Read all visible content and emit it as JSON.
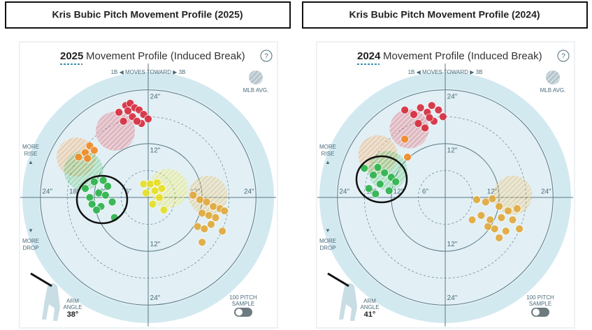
{
  "chart_data": [
    {
      "type": "scatter",
      "title": "Kris Bubic Pitch Movement Profile (2025)",
      "year": "2025",
      "subtitle": "Movement Profile (Induced Break)",
      "help": "?",
      "direction": "1B ◀ MOVES TOWARD ▶ 3B",
      "mlb_avg": "MLB AVG.",
      "rise": [
        "MORE",
        "RISE"
      ],
      "drop": [
        "MORE",
        "DROP"
      ],
      "arm_angle_label": [
        "ARM",
        "ANGLE"
      ],
      "arm_angle": "38°",
      "sample": [
        "100 PITCH",
        "SAMPLE"
      ],
      "rlim": [
        0,
        28
      ],
      "rings": [
        {
          "value": 6,
          "label": "6\""
        },
        {
          "value": 12,
          "label": "12\""
        },
        {
          "value": 18,
          "label": "18\""
        },
        {
          "value": 24,
          "label": "24\""
        }
      ],
      "series": [
        {
          "color": "#d62a3c",
          "avg_x": -7.3,
          "avg_y": 14.8,
          "x": [
            -6.5,
            -5,
            -4,
            -3,
            -2,
            -1,
            0,
            -5.5,
            -3.5,
            -1.5,
            -2.5,
            -4.5
          ],
          "values": [
            19,
            20.5,
            21,
            20,
            19.5,
            18.5,
            17.5,
            17,
            18,
            16.5,
            17,
            19.3
          ]
        },
        {
          "color": "#f08a24",
          "avg_x": -16,
          "avg_y": 9,
          "x": [
            -13,
            -12,
            -14,
            -15.5,
            -13.5
          ],
          "values": [
            11.5,
            10.5,
            10,
            9,
            8.7
          ]
        },
        {
          "color": "#2bb34a",
          "avg_x": -14.4,
          "avg_y": 6,
          "x": [
            -14,
            -12,
            -10,
            -9,
            -11,
            -13,
            -12.5,
            -10.5,
            -8,
            -9.5,
            -11.5,
            -7.5
          ],
          "values": [
            2,
            3.5,
            3.8,
            2.5,
            1,
            0,
            -1.5,
            -2,
            -1,
            0.5,
            -2.8,
            -4.5
          ]
        },
        {
          "color": "#e6df22",
          "avg_x": 4.4,
          "avg_y": 2,
          "x": [
            -1,
            0.5,
            2,
            3,
            1.5,
            -0.5,
            2.5,
            3.5,
            1
          ],
          "values": [
            3,
            3,
            3.3,
            2,
            1.5,
            1,
            0,
            -2.8,
            -1.5
          ]
        },
        {
          "color": "#e0a83a",
          "avg_x": 13.3,
          "avg_y": 0.5,
          "x": [
            10,
            11.5,
            13,
            14.5,
            16,
            12,
            13.5,
            15,
            17,
            11,
            12.5,
            14,
            16.5,
            12
          ],
          "values": [
            0.5,
            -0.5,
            -1,
            -2,
            -2.5,
            -3.5,
            -4,
            -4.5,
            -3,
            -6.5,
            -7,
            -6,
            -7.5,
            -10
          ]
        }
      ]
    },
    {
      "type": "scatter",
      "title": "Kris Bubic Pitch Movement Profile (2024)",
      "year": "2024",
      "subtitle": "Movement Profile (Induced Break)",
      "help": "?",
      "direction": "1B ◀ MOVES TOWARD ▶ 3B",
      "mlb_avg": "MLB AVG.",
      "rise": [
        "MORE",
        "RISE"
      ],
      "drop": [
        "MORE",
        "DROP"
      ],
      "arm_angle_label": [
        "ARM",
        "ANGLE"
      ],
      "arm_angle": "41°",
      "sample": [
        "100 PITCH",
        "SAMPLE"
      ],
      "rlim": [
        0,
        28
      ],
      "rings": [
        {
          "value": 6,
          "label": "6\""
        },
        {
          "value": 12,
          "label": "12\""
        },
        {
          "value": 18,
          "label": "18\""
        },
        {
          "value": 24,
          "label": "24\""
        }
      ],
      "series": [
        {
          "color": "#d62a3c",
          "avg_x": -8,
          "avg_y": 15.3,
          "x": [
            -9,
            -7,
            -5.5,
            -4,
            -3,
            -1.5,
            -0.5,
            -6,
            -4.5,
            -2.5,
            -3.5
          ],
          "values": [
            19.5,
            18.5,
            20,
            19,
            20.5,
            19.5,
            18,
            16.5,
            15.5,
            17,
            17.8
          ]
        },
        {
          "color": "#f08a24",
          "avg_x": -15,
          "avg_y": 9.5,
          "x": [
            -9,
            -8.4
          ],
          "values": [
            13,
            9
          ]
        },
        {
          "color": "#2bb34a",
          "avg_x": -12.8,
          "avg_y": 6,
          "x": [
            -18,
            -16,
            -15,
            -13.5,
            -12,
            -11,
            -14.5,
            -17,
            -12.5,
            -15.5
          ],
          "values": [
            6.5,
            5,
            6.7,
            5.5,
            4.5,
            3.5,
            3,
            2,
            1.5,
            0.8
          ]
        },
        {
          "color": "#e0a83a",
          "avg_x": 15,
          "avg_y": 0.5,
          "x": [
            7,
            9,
            10.5,
            12,
            14,
            16,
            8,
            10,
            12.5,
            15,
            6,
            9.5,
            11,
            13.5,
            16.5,
            12
          ],
          "values": [
            -0.5,
            -1,
            -0.3,
            -2,
            -3,
            -2.5,
            -4,
            -5,
            -4.5,
            -5,
            -5,
            -6.5,
            -7,
            -7.5,
            -7,
            -9
          ]
        }
      ]
    }
  ]
}
